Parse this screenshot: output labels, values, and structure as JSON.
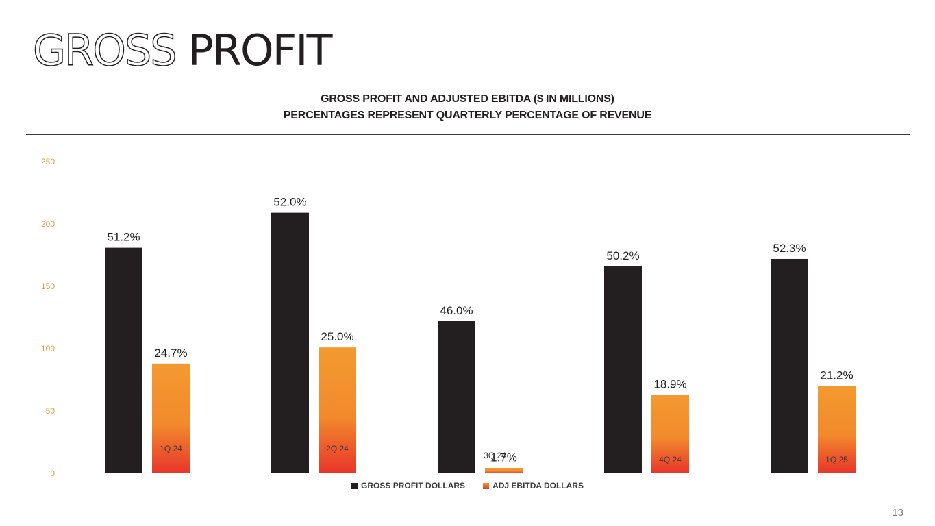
{
  "slide": {
    "title_outline": "GROSS",
    "title_solid": "PROFIT",
    "page_number": "13"
  },
  "colors": {
    "gross_profit": "#231f20",
    "ebitda_top": "#f39a2f",
    "ebitda_bottom": "#e8352b",
    "axis_tick": "#e69a3c"
  },
  "chart_data": {
    "type": "bar",
    "title": "GROSS PROFIT AND ADJUSTED EBITDA ($ IN MILLIONS)",
    "subtitle": "PERCENTAGES REPRESENT QUARTERLY PERCENTAGE OF REVENUE",
    "categories": [
      "1Q 24",
      "2Q 24",
      "3Q 24",
      "4Q 24",
      "1Q 25"
    ],
    "series": [
      {
        "name": "GROSS PROFIT DOLLARS",
        "values": [
          181,
          209,
          122,
          166,
          172
        ],
        "labels": [
          "51.2%",
          "52.0%",
          "46.0%",
          "50.2%",
          "52.3%"
        ]
      },
      {
        "name": "ADJ EBITDA DOLLARS",
        "values": [
          88,
          101,
          4,
          63,
          70
        ],
        "labels": [
          "24.7%",
          "25.0%",
          "1.7%",
          "18.9%",
          "21.2%"
        ]
      }
    ],
    "y_ticks": [
      0,
      50,
      100,
      150,
      200,
      250
    ],
    "ylim": [
      0,
      250
    ],
    "xlabel": "",
    "ylabel": "",
    "grid": false,
    "legend": "bottom"
  }
}
